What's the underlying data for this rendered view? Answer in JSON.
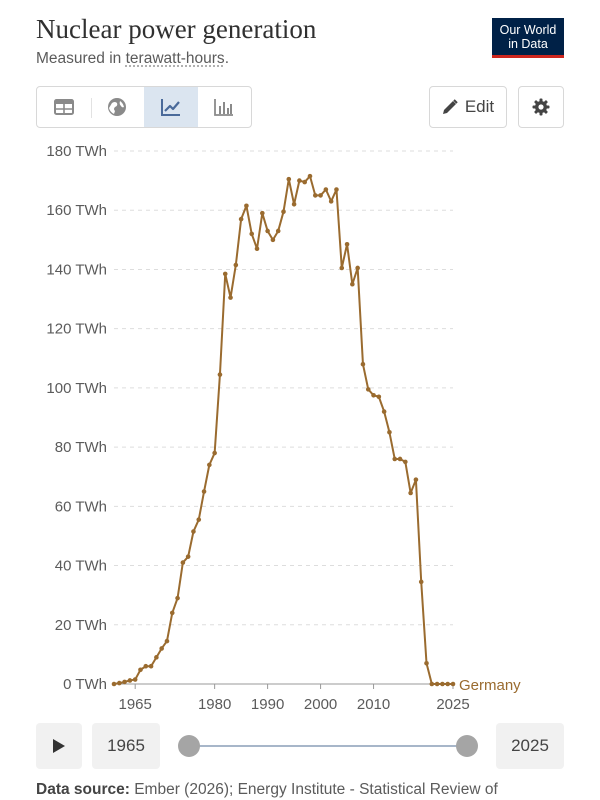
{
  "header": {
    "title": "Nuclear power generation",
    "subtitle_prefix": "Measured in",
    "subtitle_unit": "terawatt-hours",
    "subtitle_suffix": ".",
    "logo_line1": "Our World",
    "logo_line2": "in Data",
    "logo_bg": "#002147",
    "logo_accent": "#ce261e"
  },
  "toolbar": {
    "tabs": [
      {
        "icon": "table-icon",
        "active": false
      },
      {
        "icon": "globe-icon",
        "active": false
      },
      {
        "icon": "line-chart-icon",
        "active": true
      },
      {
        "icon": "bar-chart-icon",
        "active": false
      }
    ],
    "edit_label": "Edit",
    "edit_icon": "pencil-icon",
    "settings_icon": "gear-icon"
  },
  "chart_data": {
    "type": "line",
    "title": "Nuclear power generation",
    "subtitle": "Measured in terawatt-hours.",
    "ylim": [
      0,
      180
    ],
    "yticks": [
      0,
      20,
      40,
      60,
      80,
      100,
      120,
      140,
      160,
      180
    ],
    "ytick_suffix": " TWh",
    "xticks": [
      1965,
      1980,
      1990,
      2000,
      2010,
      2025
    ],
    "xlim": [
      1961,
      2025
    ],
    "grid": "horizontal dashed",
    "series": [
      {
        "name": "Germany",
        "color": "#9a6b2f",
        "x": [
          1961,
          1962,
          1963,
          1964,
          1965,
          1966,
          1967,
          1968,
          1969,
          1970,
          1971,
          1972,
          1973,
          1974,
          1975,
          1976,
          1977,
          1978,
          1979,
          1980,
          1981,
          1982,
          1983,
          1984,
          1985,
          1986,
          1987,
          1988,
          1989,
          1990,
          1991,
          1992,
          1993,
          1994,
          1995,
          1996,
          1997,
          1998,
          1999,
          2000,
          2001,
          2002,
          2003,
          2004,
          2005,
          2006,
          2007,
          2008,
          2009,
          2010,
          2011,
          2012,
          2013,
          2014,
          2015,
          2016,
          2017,
          2018,
          2019,
          2020,
          2021,
          2022,
          2023,
          2024,
          2025
        ],
        "y": [
          0,
          0.3,
          0.7,
          1.2,
          1.5,
          4.8,
          6.0,
          6.0,
          9.0,
          12.0,
          14.5,
          24.0,
          29.0,
          41.0,
          43.0,
          51.5,
          55.5,
          65.0,
          74.0,
          78.0,
          104.5,
          138.5,
          130.5,
          141.5,
          157.0,
          161.5,
          152.0,
          147.0,
          159.0,
          153.0,
          150.0,
          153.0,
          159.5,
          170.5,
          162.0,
          170.0,
          169.5,
          171.5,
          165.0,
          165.0,
          167.0,
          163.0,
          167.0,
          140.5,
          148.5,
          135.0,
          140.5,
          108.0,
          99.5,
          97.5,
          97.0,
          92.0,
          85.0,
          76.0,
          76.0,
          75.0,
          64.5,
          69.0,
          34.5,
          7.0,
          0,
          0,
          0,
          0,
          0
        ]
      }
    ]
  },
  "timeline": {
    "start_year": "1965",
    "end_year": "2025",
    "play_icon": "play-icon"
  },
  "footer": {
    "source_label": "Data source:",
    "source_text": "Ember (2026); Energy Institute - Statistical Review of"
  }
}
